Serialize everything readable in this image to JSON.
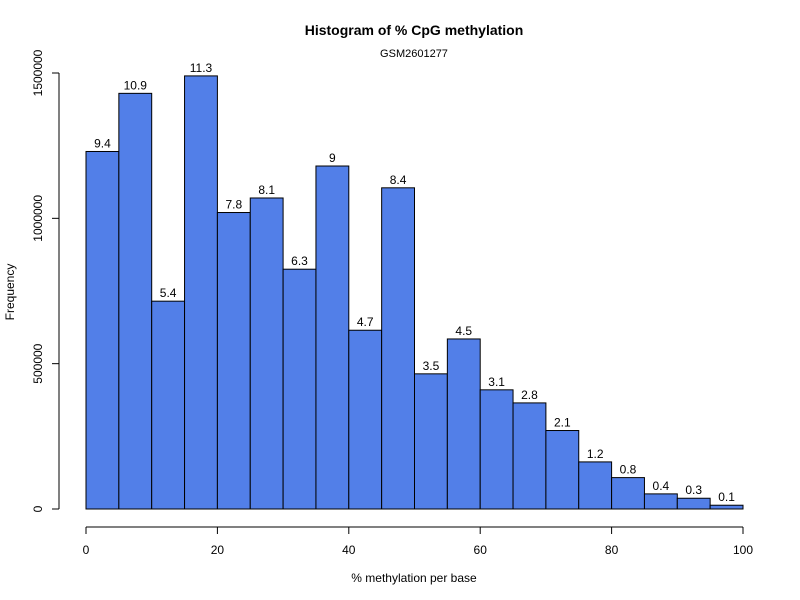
{
  "chart_data": {
    "type": "bar",
    "title": "Histogram of % CpG methylation",
    "subtitle": "GSM2601277",
    "xlabel": "% methylation per base",
    "ylabel": "Frequency",
    "bar_color": "#527fe8",
    "bin_edges": [
      0,
      5,
      10,
      15,
      20,
      25,
      30,
      35,
      40,
      45,
      50,
      55,
      60,
      65,
      70,
      75,
      80,
      85,
      90,
      95,
      100
    ],
    "values": [
      1230000,
      1430000,
      715000,
      1490000,
      1020000,
      1070000,
      825000,
      1180000,
      615000,
      1105000,
      465000,
      585000,
      410000,
      365000,
      270000,
      162000,
      108000,
      52000,
      37000,
      13000
    ],
    "bar_labels": [
      "9.4",
      "10.9",
      "5.4",
      "11.3",
      "7.8",
      "8.1",
      "6.3",
      "9",
      "4.7",
      "8.4",
      "3.5",
      "4.5",
      "3.1",
      "2.8",
      "2.1",
      "1.2",
      "0.8",
      "0.4",
      "0.3",
      "0.1"
    ],
    "xlim": [
      0,
      100
    ],
    "ylim": [
      0,
      1500000
    ],
    "xticks": [
      0,
      20,
      40,
      60,
      80,
      100
    ],
    "xtick_labels": [
      "0",
      "20",
      "40",
      "60",
      "80",
      "100"
    ],
    "yticks": [
      0,
      500000,
      1000000,
      1500000
    ],
    "ytick_labels": [
      "0",
      "500000",
      "1000000",
      "1500000"
    ],
    "grid": false
  }
}
